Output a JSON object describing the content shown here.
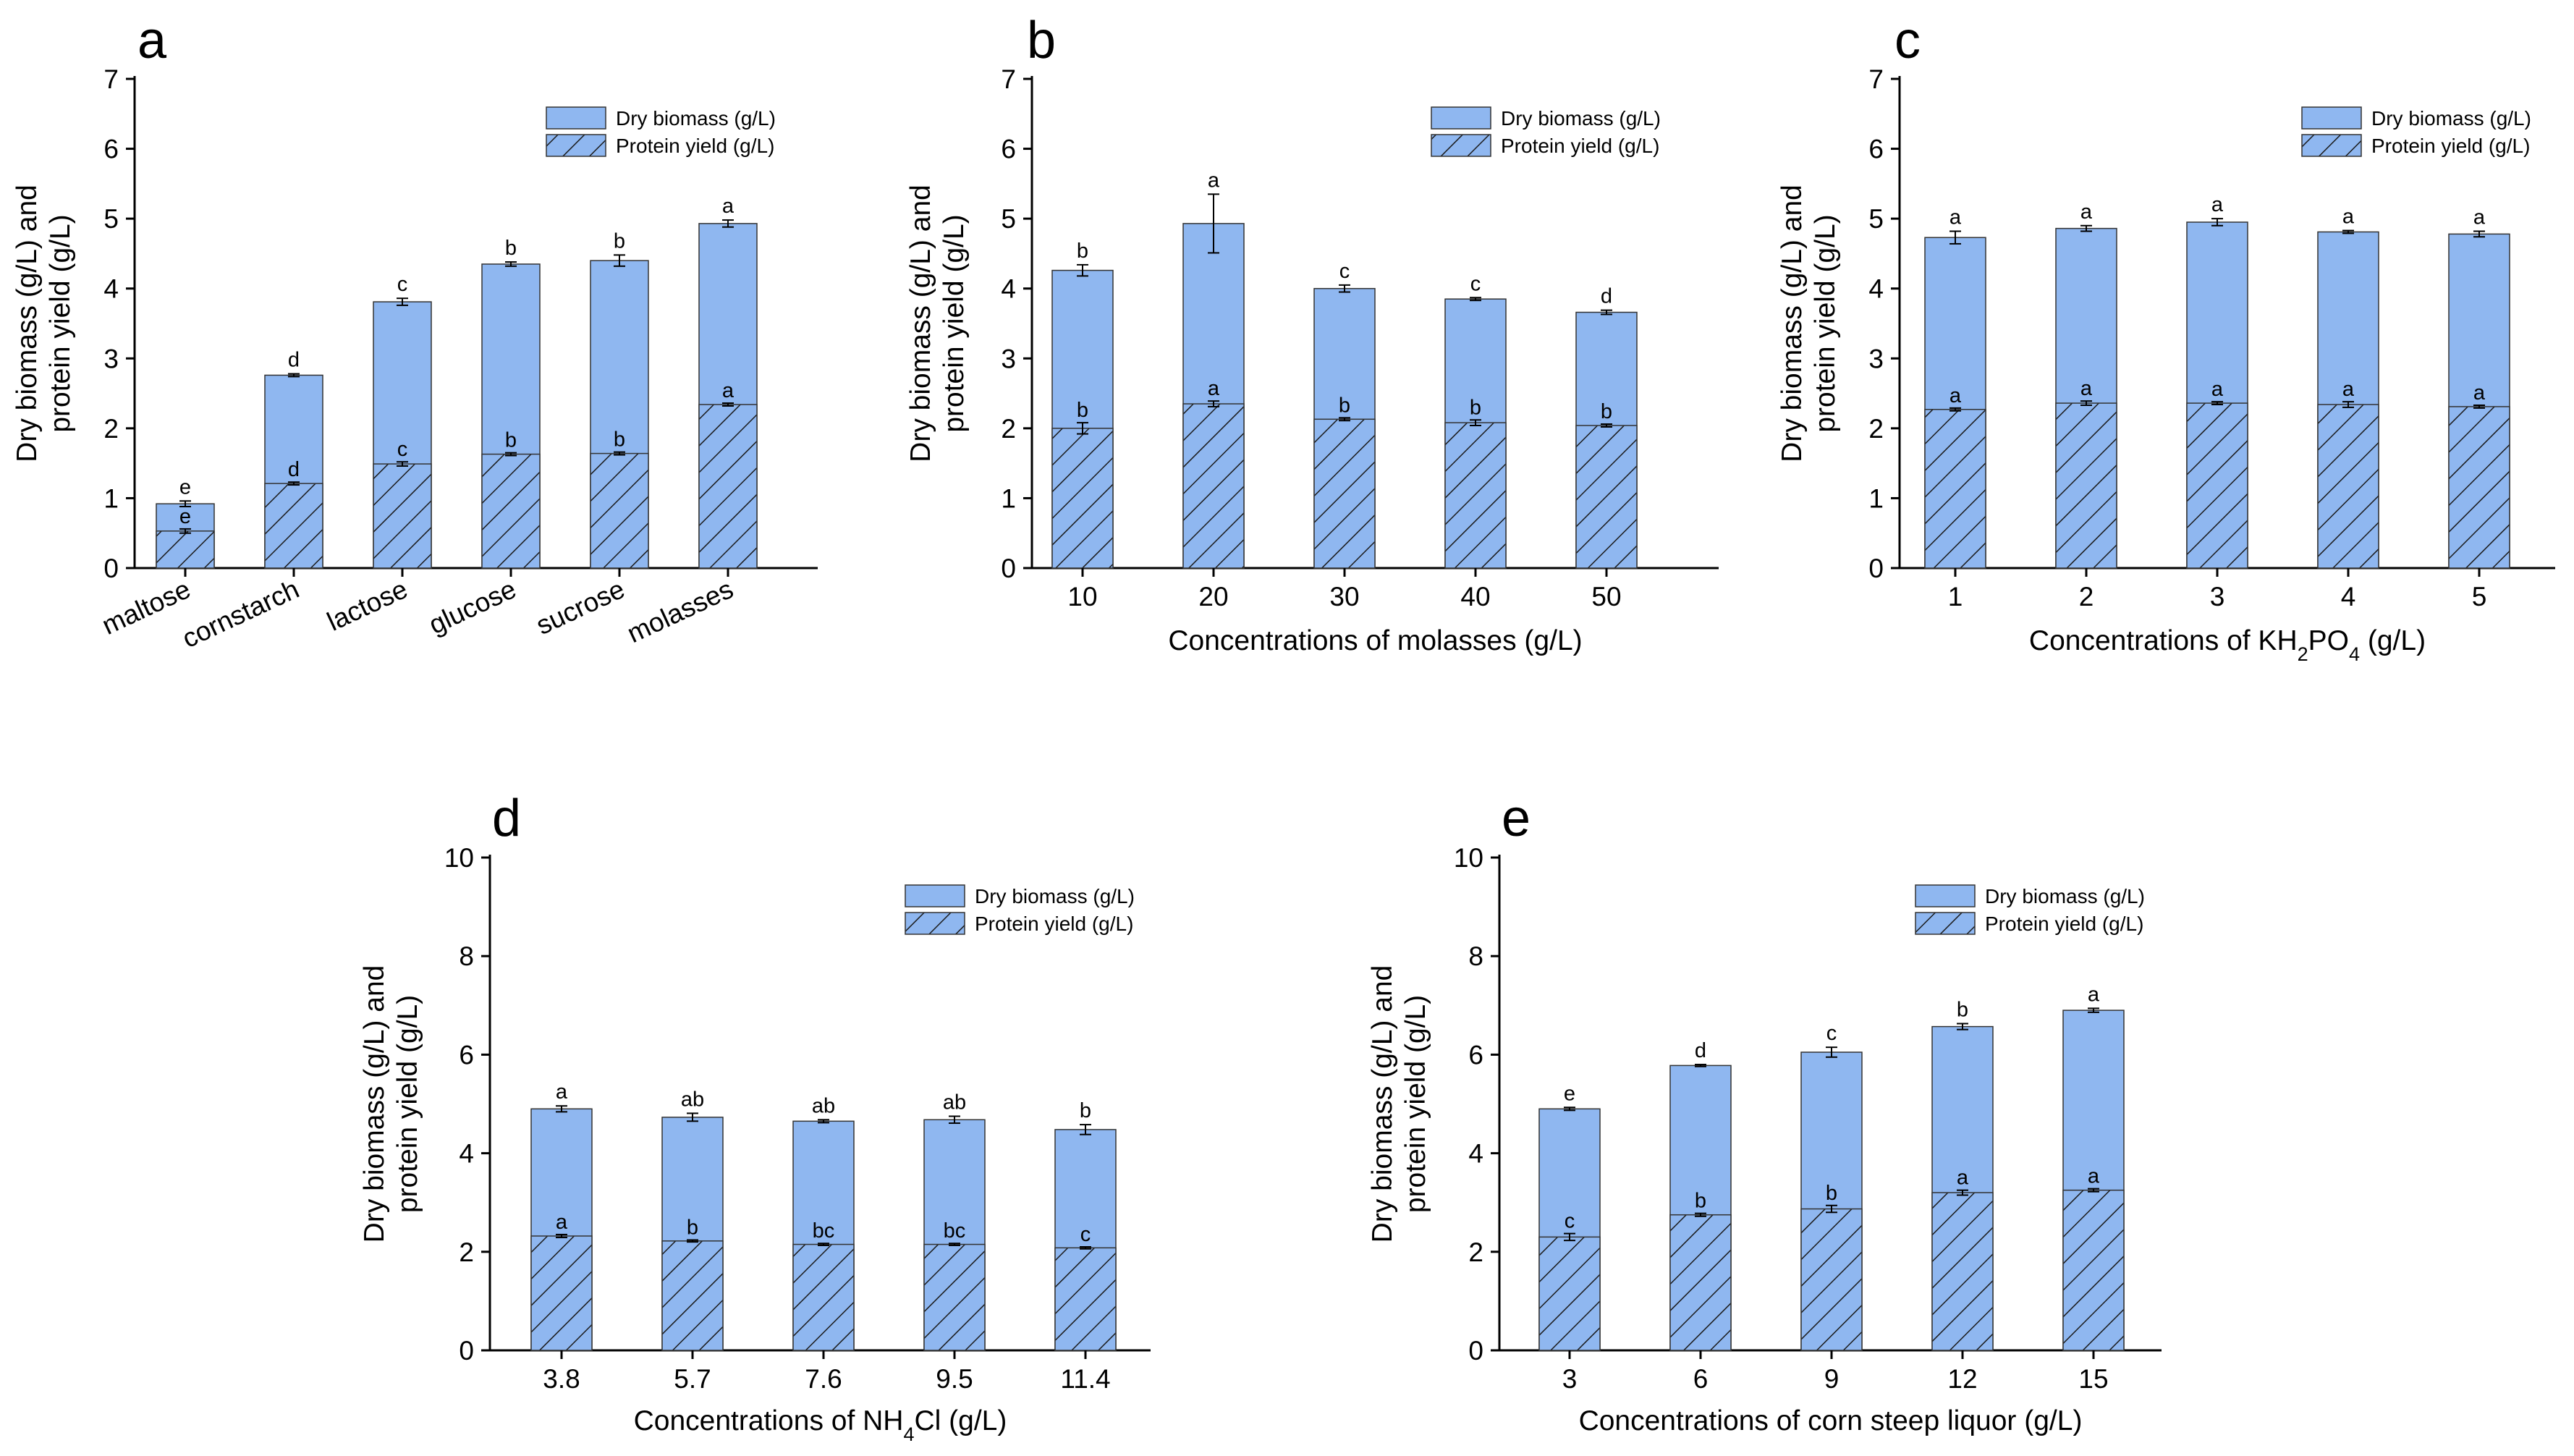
{
  "figure": {
    "legend_labels": [
      "Dry biomass (g/L)",
      "Protein yield (g/L)"
    ],
    "colors": {
      "bar_fill": "#8fb7f0",
      "bar_stroke": "#333333",
      "hatch": "#1a1a1a"
    }
  },
  "chart_data": [
    {
      "panel": "a",
      "type": "bar",
      "stacked": true,
      "categories": [
        "maltose",
        "cornstarch",
        "lactose",
        "glucose",
        "sucrose",
        "molasses"
      ],
      "series": [
        {
          "name": "Dry biomass (g/L)",
          "values": [
            0.92,
            2.76,
            3.81,
            4.35,
            4.4,
            4.93
          ],
          "errors": [
            0.04,
            0.02,
            0.05,
            0.03,
            0.08,
            0.05
          ],
          "labels": [
            "e",
            "d",
            "c",
            "b",
            "b",
            "a"
          ]
        },
        {
          "name": "Protein yield (g/L)",
          "values": [
            0.53,
            1.21,
            1.49,
            1.63,
            1.64,
            2.34
          ],
          "errors": [
            0.03,
            0.02,
            0.03,
            0.02,
            0.02,
            0.02
          ],
          "labels": [
            "e",
            "d",
            "c",
            "b",
            "b",
            "a"
          ]
        }
      ],
      "ylabel": [
        "Dry biomass (g/L) and",
        "protein yield (g/L)"
      ],
      "xlabel": "",
      "ylim": [
        0,
        7
      ],
      "yticks": [
        "0",
        "1",
        "2",
        "3",
        "4",
        "5",
        "6",
        "7"
      ],
      "legend": "top-right"
    },
    {
      "panel": "b",
      "type": "bar",
      "stacked": true,
      "categories": [
        "10",
        "20",
        "30",
        "40",
        "50"
      ],
      "series": [
        {
          "name": "Dry biomass (g/L)",
          "values": [
            4.26,
            4.93,
            4.0,
            3.85,
            3.66
          ],
          "errors": [
            0.08,
            0.42,
            0.05,
            0.02,
            0.03
          ],
          "labels": [
            "b",
            "a",
            "c",
            "c",
            "d"
          ]
        },
        {
          "name": "Protein yield (g/L)",
          "values": [
            2.0,
            2.35,
            2.13,
            2.08,
            2.04
          ],
          "errors": [
            0.08,
            0.04,
            0.02,
            0.04,
            0.02
          ],
          "labels": [
            "b",
            "a",
            "b",
            "b",
            "b"
          ]
        }
      ],
      "ylabel": [
        "Dry biomass (g/L) and",
        "protein yield (g/L)"
      ],
      "xlabel": "Concentrations of molasses (g/L)",
      "ylim": [
        0,
        7
      ],
      "yticks": [
        "0",
        "1",
        "2",
        "3",
        "4",
        "5",
        "6",
        "7"
      ],
      "legend": "top-right"
    },
    {
      "panel": "c",
      "type": "bar",
      "stacked": true,
      "categories": [
        "1",
        "2",
        "3",
        "4",
        "5"
      ],
      "series": [
        {
          "name": "Dry biomass (g/L)",
          "values": [
            4.73,
            4.86,
            4.95,
            4.81,
            4.78
          ],
          "errors": [
            0.09,
            0.04,
            0.05,
            0.02,
            0.04
          ],
          "labels": [
            "a",
            "a",
            "a",
            "a",
            "a"
          ]
        },
        {
          "name": "Protein yield (g/L)",
          "values": [
            2.27,
            2.36,
            2.36,
            2.34,
            2.31
          ],
          "errors": [
            0.02,
            0.03,
            0.02,
            0.04,
            0.02
          ],
          "labels": [
            "a",
            "a",
            "a",
            "a",
            "a"
          ]
        }
      ],
      "ylabel": [
        "Dry biomass (g/L) and",
        "protein yield (g/L)"
      ],
      "xlabel": "Concentrations of KH2PO4 (g/L)",
      "xlabel_parts": [
        "Concentrations of KH",
        "2",
        "PO",
        "4",
        " (g/L)"
      ],
      "ylim": [
        0,
        7
      ],
      "yticks": [
        "0",
        "1",
        "2",
        "3",
        "4",
        "5",
        "6",
        "7"
      ],
      "legend": "top-right"
    },
    {
      "panel": "d",
      "type": "bar",
      "stacked": true,
      "categories": [
        "3.8",
        "5.7",
        "7.6",
        "9.5",
        "11.4"
      ],
      "series": [
        {
          "name": "Dry biomass (g/L)",
          "values": [
            4.9,
            4.73,
            4.65,
            4.68,
            4.48
          ],
          "errors": [
            0.06,
            0.08,
            0.03,
            0.07,
            0.1
          ],
          "labels": [
            "a",
            "ab",
            "ab",
            "ab",
            "b"
          ]
        },
        {
          "name": "Protein yield (g/L)",
          "values": [
            2.32,
            2.22,
            2.15,
            2.15,
            2.08
          ],
          "errors": [
            0.03,
            0.02,
            0.02,
            0.02,
            0.02
          ],
          "labels": [
            "a",
            "b",
            "bc",
            "bc",
            "c"
          ]
        }
      ],
      "ylabel": [
        "Dry biomass (g/L) and",
        "protein yield (g/L)"
      ],
      "xlabel": "Concentrations of NH4Cl (g/L)",
      "xlabel_parts": [
        "Concentrations of NH",
        "4",
        "Cl (g/L)"
      ],
      "ylim": [
        0,
        10
      ],
      "yticks": [
        "0",
        "2",
        "4",
        "6",
        "8",
        "10"
      ],
      "legend": "top-right"
    },
    {
      "panel": "e",
      "type": "bar",
      "stacked": true,
      "categories": [
        "3",
        "6",
        "9",
        "12",
        "15"
      ],
      "series": [
        {
          "name": "Dry biomass (g/L)",
          "values": [
            4.9,
            5.78,
            6.05,
            6.57,
            6.9
          ],
          "errors": [
            0.03,
            0.02,
            0.1,
            0.06,
            0.04
          ],
          "labels": [
            "e",
            "d",
            "c",
            "b",
            "a"
          ]
        },
        {
          "name": "Protein yield (g/L)",
          "values": [
            2.3,
            2.75,
            2.87,
            3.2,
            3.25
          ],
          "errors": [
            0.07,
            0.03,
            0.07,
            0.05,
            0.03
          ],
          "labels": [
            "c",
            "b",
            "b",
            "a",
            "a"
          ]
        }
      ],
      "ylabel": [
        "Dry biomass (g/L) and",
        "protein yield (g/L)"
      ],
      "xlabel": "Concentrations of corn steep liquor (g/L)",
      "ylim": [
        0,
        10
      ],
      "yticks": [
        "0",
        "2",
        "4",
        "6",
        "8",
        "10"
      ],
      "legend": "top-right"
    }
  ]
}
